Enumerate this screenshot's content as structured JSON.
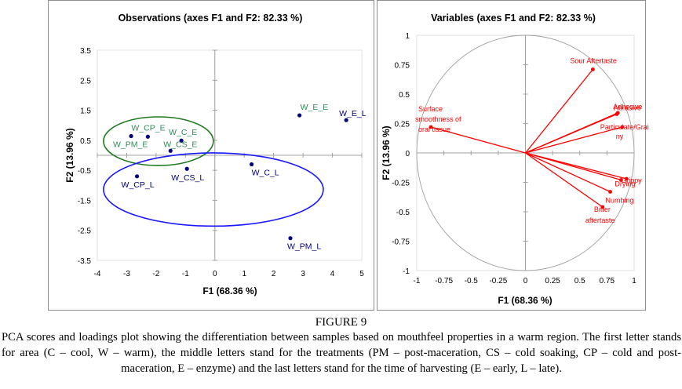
{
  "figure": {
    "label": "FIGURE 9",
    "caption": "PCA scores and loadings plot showing the differentiation between samples based on mouthfeel properties in a warm region. The first letter stands for area (C – cool, W – warm), the middle letters stand for the treatments (PM – post-maceration, CS – cold soaking, CP – cold and post-maceration, E – enzyme) and the last letters stand for the time of harvesting (E – early, L – late)."
  },
  "colors": {
    "point": "#000080",
    "label_early": "#2e8b57",
    "label_late": "#000080",
    "ellipse_early": "#1f7a1f",
    "ellipse_late": "#1a1aff",
    "vector": "#ff0000",
    "circle": "#a0a0a0",
    "axis": "#a0a0a0"
  },
  "chart_data": [
    {
      "type": "scatter",
      "title": "Observations (axes F1 and F2: 82.33 %)",
      "xlabel": "F1 (68.36 %)",
      "ylabel": "F2 (13.96 %)",
      "xlim": [
        -4,
        5
      ],
      "ylim": [
        -3.5,
        3.5
      ],
      "xticks": [
        -4,
        -3,
        -2,
        -1,
        0,
        1,
        2,
        3,
        4,
        5
      ],
      "yticks": [
        3.5,
        2.5,
        1.5,
        0.5,
        -0.5,
        -1.5,
        -2.5,
        -3.5
      ],
      "points": [
        {
          "label": "W_PM_E",
          "x": -2.85,
          "y": 0.64,
          "group": "early"
        },
        {
          "label": "W_CP_E",
          "x": -2.28,
          "y": 0.62,
          "group": "early"
        },
        {
          "label": "W_C_E",
          "x": -1.14,
          "y": 0.49,
          "group": "early"
        },
        {
          "label": "W_CS_E",
          "x": -1.51,
          "y": 0.15,
          "group": "early"
        },
        {
          "label": "W_E_E",
          "x": 2.88,
          "y": 1.33,
          "group": "early"
        },
        {
          "label": "W_E_L",
          "x": 4.47,
          "y": 1.17,
          "group": "late"
        },
        {
          "label": "W_CP_L",
          "x": -2.65,
          "y": -0.7,
          "group": "late"
        },
        {
          "label": "W_CS_L",
          "x": -0.95,
          "y": -0.45,
          "group": "late"
        },
        {
          "label": "W_C_L",
          "x": 1.25,
          "y": -0.3,
          "group": "late"
        },
        {
          "label": "W_PM_L",
          "x": 2.57,
          "y": -2.76,
          "group": "late"
        }
      ],
      "ellipses": [
        {
          "name": "early-group",
          "cx": -1.92,
          "cy": 0.47,
          "rx": 1.87,
          "ry": 0.81,
          "color": "green"
        },
        {
          "name": "late-group",
          "cx": -0.05,
          "cy": -1.14,
          "rx": 3.74,
          "ry": 1.22,
          "color": "blue"
        }
      ]
    },
    {
      "type": "scatter",
      "subtype": "loadings",
      "title": "Variables (axes F1 and F2: 82.33 %)",
      "xlabel": "F1 (68.36 %)",
      "ylabel": "F2 (13.96 %)",
      "xlim": [
        -1,
        1
      ],
      "ylim": [
        -1,
        1
      ],
      "xticks": [
        -1,
        -0.75,
        -0.5,
        -0.25,
        0,
        0.25,
        0.5,
        0.75,
        1
      ],
      "yticks": [
        1,
        0.75,
        0.5,
        0.25,
        0,
        -0.25,
        -0.5,
        -0.75,
        -1
      ],
      "correlation_circle": true,
      "variables": [
        {
          "label": "Sour Aftertaste",
          "x": 0.62,
          "y": 0.71
        },
        {
          "label": "Surface smoothness of oral tissue",
          "x": -0.87,
          "y": 0.22
        },
        {
          "label": "Adhesive",
          "x": 0.85,
          "y": 0.34
        },
        {
          "label": "Abrasive",
          "x": 0.84,
          "y": 0.33
        },
        {
          "label": "Particulate/Grainy",
          "x": 0.89,
          "y": 0.22
        },
        {
          "label": "Grippy",
          "x": 0.93,
          "y": -0.22
        },
        {
          "label": "Drying",
          "x": 0.88,
          "y": -0.23
        },
        {
          "label": "Numbing",
          "x": 0.78,
          "y": -0.33
        },
        {
          "label": "Bitter aftertaste",
          "x": 0.71,
          "y": -0.46
        }
      ]
    }
  ]
}
